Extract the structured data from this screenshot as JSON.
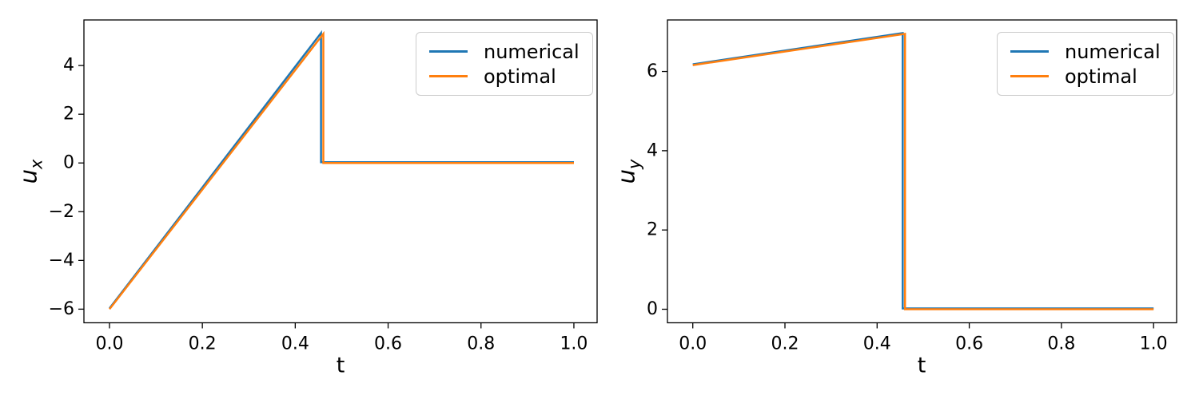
{
  "figure": {
    "background": "#ffffff",
    "text_color": "#000000",
    "spine_color": "#000000"
  },
  "legend": {
    "items": [
      {
        "label": "numerical",
        "color": "#1f77b4"
      },
      {
        "label": "optimal",
        "color": "#ff7f0e"
      }
    ],
    "position": "upper right",
    "border_color": "#cccccc"
  },
  "chart_data": [
    {
      "id": "ux",
      "type": "line",
      "title": "",
      "xlabel": "t",
      "ylabel": "u_x",
      "ylabel_main": "u",
      "ylabel_sub": "x",
      "xlim": [
        -0.055,
        1.05
      ],
      "ylim": [
        -6.56,
        5.87
      ],
      "grid": false,
      "xticks": {
        "values": [
          0.0,
          0.2,
          0.4,
          0.6,
          0.8,
          1.0
        ],
        "labels": [
          "0.0",
          "0.2",
          "0.4",
          "0.6",
          "0.8",
          "1.0"
        ]
      },
      "yticks": {
        "values": [
          -6,
          -4,
          -2,
          0,
          2,
          4
        ],
        "labels": [
          "−6",
          "−4",
          "−2",
          "0",
          "2",
          "4"
        ]
      },
      "series": [
        {
          "name": "numerical",
          "color": "#1f77b4",
          "points": [
            [
              0.0,
              -6.0
            ],
            [
              0.4555,
              5.3
            ],
            [
              0.4555,
              0.0
            ],
            [
              1.0,
              0.0
            ]
          ]
        },
        {
          "name": "optimal",
          "color": "#ff7f0e",
          "points": [
            [
              0.0,
              -6.0
            ],
            [
              0.4605,
              5.3
            ],
            [
              0.4605,
              0.0
            ],
            [
              1.0,
              0.0
            ]
          ]
        }
      ],
      "annotations": {
        "start_value": -6.0,
        "peak_value": 5.3,
        "switch_time": 0.46,
        "final_value": 0.0
      }
    },
    {
      "id": "uy",
      "type": "line",
      "title": "",
      "xlabel": "t",
      "ylabel": "u_y",
      "ylabel_main": "u",
      "ylabel_sub": "y",
      "xlim": [
        -0.055,
        1.05
      ],
      "ylim": [
        -0.342,
        7.3
      ],
      "grid": false,
      "xticks": {
        "values": [
          0.0,
          0.2,
          0.4,
          0.6,
          0.8,
          1.0
        ],
        "labels": [
          "0.0",
          "0.2",
          "0.4",
          "0.6",
          "0.8",
          "1.0"
        ]
      },
      "yticks": {
        "values": [
          0,
          2,
          4,
          6
        ],
        "labels": [
          "0",
          "2",
          "4",
          "6"
        ]
      },
      "series": [
        {
          "name": "numerical",
          "color": "#1f77b4",
          "points": [
            [
              0.0,
              6.16
            ],
            [
              0.4555,
              6.95
            ],
            [
              0.4555,
              0.0
            ],
            [
              1.0,
              0.0
            ]
          ]
        },
        {
          "name": "optimal",
          "color": "#ff7f0e",
          "points": [
            [
              0.0,
              6.16
            ],
            [
              0.4605,
              6.95
            ],
            [
              0.4605,
              0.0
            ],
            [
              1.0,
              0.0
            ]
          ]
        }
      ],
      "annotations": {
        "start_value": 6.16,
        "peak_value": 6.95,
        "switch_time": 0.46,
        "final_value": 0.0
      }
    }
  ]
}
